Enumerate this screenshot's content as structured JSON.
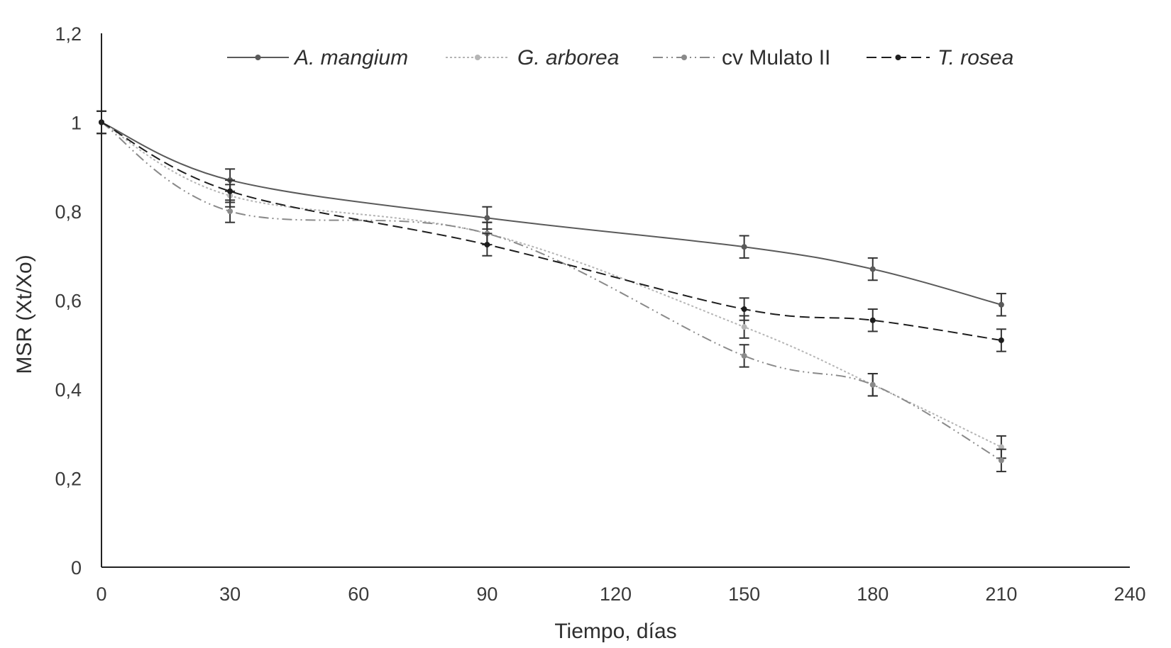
{
  "chart_data": {
    "type": "line",
    "title": "",
    "xlabel": "Tiempo, días",
    "ylabel": "MSR (Xt/Xo)",
    "xlim": [
      0,
      240
    ],
    "ylim": [
      0,
      1.2
    ],
    "x_ticks": [
      "0",
      "30",
      "60",
      "90",
      "120",
      "150",
      "180",
      "210",
      "240"
    ],
    "y_ticks": [
      "0",
      "0,2",
      "0,4",
      "0,6",
      "0,8",
      "1",
      "1,2"
    ],
    "grid": false,
    "legend_position": "top",
    "x": [
      0,
      30,
      90,
      150,
      180,
      210
    ],
    "series": [
      {
        "name": "A. mangium",
        "italic": true,
        "color": "#5a5a5a",
        "dash": "solid",
        "values": [
          1.0,
          0.87,
          0.785,
          0.72,
          0.67,
          0.59
        ],
        "errors": [
          0.025,
          0.025,
          0.025,
          0.025,
          0.025,
          0.025
        ]
      },
      {
        "name": "G. arborea",
        "italic": true,
        "color": "#b5b5b5",
        "dash": "dotted",
        "values": [
          1.0,
          0.835,
          0.75,
          0.54,
          0.41,
          0.27
        ],
        "errors": [
          0.025,
          0.025,
          0.025,
          0.025,
          0.025,
          0.025
        ]
      },
      {
        "name": "cv Mulato II",
        "italic": false,
        "color": "#8a8a8a",
        "dash": "dashdotdot",
        "values": [
          1.0,
          0.8,
          0.75,
          0.475,
          0.41,
          0.24
        ],
        "errors": [
          0.025,
          0.025,
          0.025,
          0.025,
          0.025,
          0.025
        ]
      },
      {
        "name": "T. rosea",
        "italic": true,
        "color": "#1e1e1e",
        "dash": "dashed",
        "values": [
          1.0,
          0.845,
          0.725,
          0.58,
          0.555,
          0.51
        ],
        "errors": [
          0.025,
          0.025,
          0.025,
          0.025,
          0.025,
          0.025
        ]
      }
    ]
  }
}
